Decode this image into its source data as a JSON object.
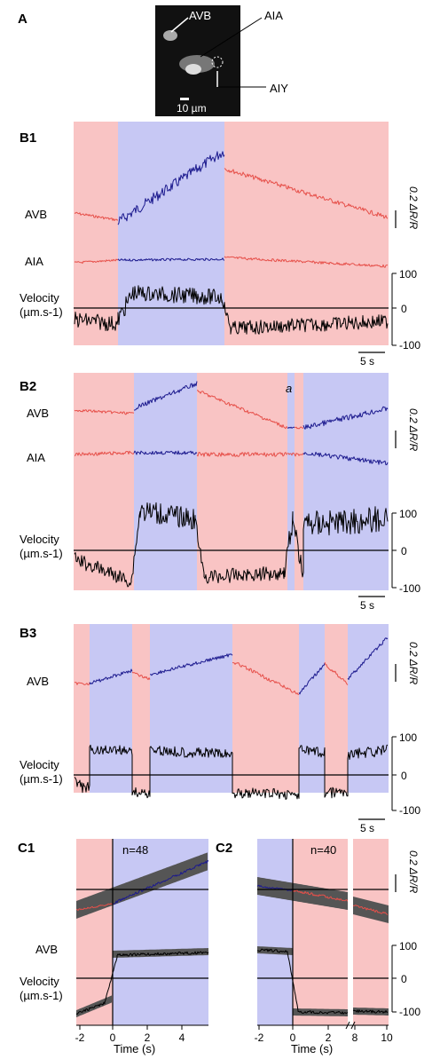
{
  "colors": {
    "red_bg": "#f9c4c4",
    "blue_bg": "#c7c8f4",
    "red_trace": "#e6504a",
    "blue_trace": "#1c1a8e",
    "black": "#000000",
    "gray_band": "#555555"
  },
  "panels": {
    "a": "A",
    "b1": "B1",
    "b2": "B2",
    "b3": "B3",
    "c1": "C1",
    "c2": "C2"
  },
  "micrograph": {
    "avb": "AVB",
    "aia": "AIA",
    "aiy": "AIY",
    "scalebar": "10 µm"
  },
  "labels": {
    "avb": "AVB",
    "aia": "AIA",
    "velocity": "Velocity",
    "velocity_units": "(µm.s-1)",
    "scale_time": "5 s",
    "scale_ratio": "0.2 ΔR/R",
    "event_a": "a"
  },
  "ticks": {
    "v100": "100",
    "v0": "0",
    "vm100": "-100"
  },
  "c1": {
    "n": "n=48",
    "x_ticks": [
      "-2",
      "0",
      "2",
      "4"
    ],
    "xlabel": "Time (s)"
  },
  "c2": {
    "n": "n=40",
    "x_ticks": [
      "-2",
      "0",
      "2",
      "8",
      "10"
    ],
    "xlabel": "Time (s)"
  }
}
